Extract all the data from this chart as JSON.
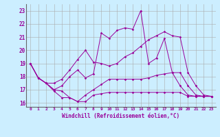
{
  "xlabel": "Windchill (Refroidissement éolien,°C)",
  "bg_color": "#cceeff",
  "line_color": "#990099",
  "grid_color": "#aaaaaa",
  "ylim": [
    15.7,
    23.5
  ],
  "xlim": [
    -0.5,
    23.5
  ],
  "yticks": [
    16,
    17,
    18,
    19,
    20,
    21,
    22,
    23
  ],
  "xticks": [
    0,
    1,
    2,
    3,
    4,
    5,
    6,
    7,
    8,
    9,
    10,
    11,
    12,
    13,
    14,
    15,
    16,
    17,
    18,
    19,
    20,
    21,
    22,
    23
  ],
  "series": [
    {
      "x": [
        0,
        1,
        2,
        3,
        4,
        5,
        6,
        7,
        8,
        9,
        10,
        11,
        12,
        13,
        14,
        15,
        16,
        17,
        18,
        19,
        20,
        21,
        22,
        23
      ],
      "y": [
        19.0,
        17.9,
        17.5,
        17.0,
        16.9,
        16.4,
        16.1,
        16.6,
        17.0,
        17.4,
        17.8,
        17.8,
        17.8,
        17.8,
        17.8,
        17.9,
        18.1,
        18.2,
        18.3,
        18.3,
        17.3,
        16.6,
        16.5,
        16.5
      ]
    },
    {
      "x": [
        0,
        1,
        2,
        3,
        4,
        5,
        6,
        7,
        8,
        9,
        10,
        11,
        12,
        13,
        14,
        15,
        16,
        17,
        18,
        19,
        20,
        21,
        22,
        23
      ],
      "y": [
        19.0,
        17.9,
        17.5,
        17.5,
        17.8,
        18.5,
        19.3,
        20.0,
        19.1,
        19.0,
        18.8,
        19.0,
        19.5,
        19.8,
        20.3,
        20.8,
        21.1,
        21.4,
        21.1,
        21.0,
        18.3,
        17.3,
        16.6,
        16.5
      ]
    },
    {
      "x": [
        0,
        1,
        2,
        3,
        4,
        5,
        6,
        7,
        8,
        9,
        10,
        11,
        12,
        13,
        14,
        15,
        16,
        17,
        18,
        19,
        20,
        21,
        22,
        23
      ],
      "y": [
        19.0,
        17.9,
        17.5,
        17.0,
        17.3,
        18.0,
        18.5,
        17.9,
        18.2,
        21.3,
        20.9,
        21.5,
        21.7,
        21.6,
        23.0,
        19.0,
        19.4,
        20.9,
        18.3,
        17.3,
        16.6,
        16.5,
        16.5,
        16.5
      ]
    },
    {
      "x": [
        0,
        1,
        2,
        3,
        4,
        5,
        6,
        7,
        8,
        9,
        10,
        11,
        12,
        13,
        14,
        15,
        16,
        17,
        18,
        19,
        20,
        21,
        22,
        23
      ],
      "y": [
        19.0,
        17.9,
        17.5,
        16.9,
        16.4,
        16.4,
        16.1,
        16.1,
        16.6,
        16.7,
        16.8,
        16.8,
        16.8,
        16.8,
        16.8,
        16.8,
        16.8,
        16.8,
        16.8,
        16.8,
        16.5,
        16.5,
        16.5,
        16.5
      ]
    }
  ]
}
